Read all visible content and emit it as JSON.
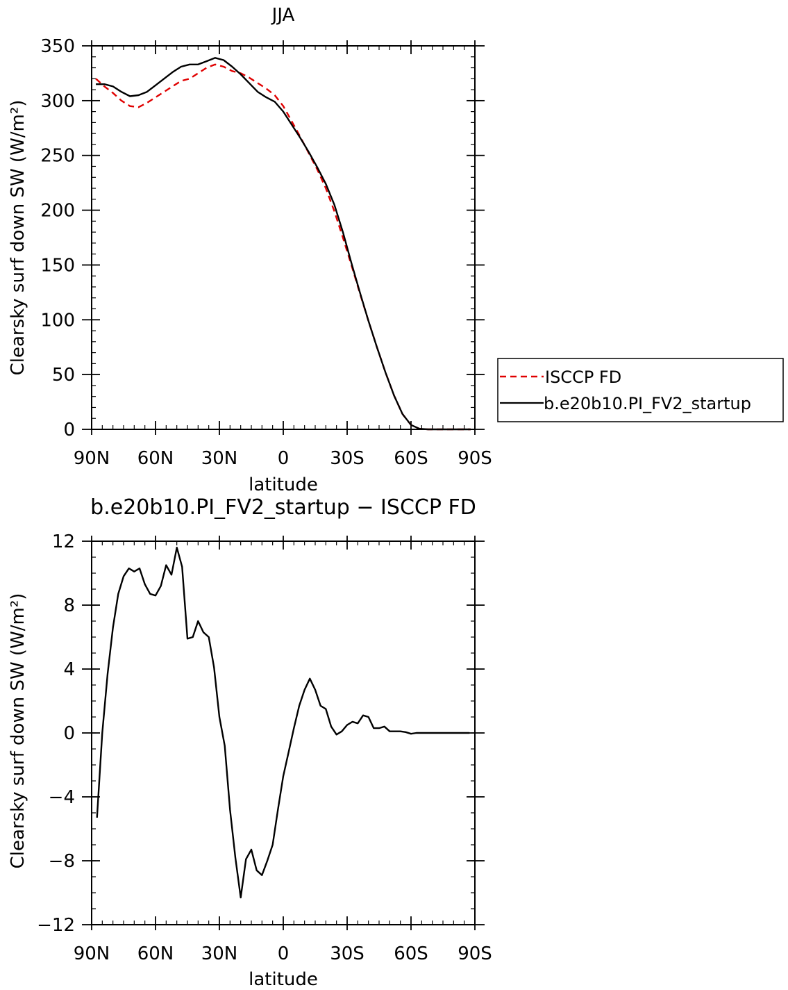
{
  "chart_data": [
    {
      "type": "line",
      "title": "JJA",
      "xlabel": "latitude",
      "ylabel": "Clearsky surf down SW (W/m²)",
      "xlim": [
        90,
        -90
      ],
      "ylim": [
        0,
        350
      ],
      "x_ticks": [
        {
          "value": 90,
          "label": "90N"
        },
        {
          "value": 60,
          "label": "60N"
        },
        {
          "value": 30,
          "label": "30N"
        },
        {
          "value": 0,
          "label": "0"
        },
        {
          "value": -30,
          "label": "30S"
        },
        {
          "value": -60,
          "label": "60S"
        },
        {
          "value": -90,
          "label": "90S"
        }
      ],
      "y_ticks": [
        {
          "value": 0,
          "label": "0"
        },
        {
          "value": 50,
          "label": "50"
        },
        {
          "value": 100,
          "label": "100"
        },
        {
          "value": 150,
          "label": "150"
        },
        {
          "value": 200,
          "label": "200"
        },
        {
          "value": 250,
          "label": "250"
        },
        {
          "value": 300,
          "label": "300"
        },
        {
          "value": 350,
          "label": "350"
        }
      ],
      "legend_placement": "right",
      "series": [
        {
          "name": "ISCCP FD",
          "color": "#e00000",
          "dash": true,
          "x": [
            88,
            84,
            80,
            76,
            72,
            68,
            64,
            60,
            56,
            52,
            48,
            44,
            40,
            36,
            32,
            28,
            24,
            20,
            16,
            12,
            8,
            4,
            0,
            -4,
            -8,
            -12,
            -16,
            -20,
            -24,
            -28,
            -32,
            -36,
            -40,
            -44,
            -48,
            -52,
            -56,
            -60,
            -64,
            -68,
            -72,
            -76,
            -80,
            -84,
            -88
          ],
          "values": [
            320,
            313,
            307,
            300,
            295,
            294,
            298,
            303,
            308,
            313,
            318,
            320,
            325,
            330,
            333,
            331,
            327,
            325,
            321,
            316,
            311,
            305,
            295,
            281,
            267,
            252,
            237,
            220,
            199,
            175,
            150,
            124,
            99,
            75,
            52,
            31,
            14,
            4,
            0.5,
            0,
            0,
            0,
            0,
            0,
            0
          ]
        },
        {
          "name": "b.e20b10.PI_FV2_startup",
          "color": "#000000",
          "dash": false,
          "x": [
            88,
            84,
            80,
            76,
            72,
            68,
            64,
            60,
            56,
            52,
            48,
            44,
            40,
            36,
            32,
            28,
            24,
            20,
            16,
            12,
            8,
            4,
            0,
            -4,
            -8,
            -12,
            -16,
            -20,
            -24,
            -28,
            -32,
            -36,
            -40,
            -44,
            -48,
            -52,
            -56,
            -60,
            -64,
            -68,
            -72,
            -76,
            -80,
            -84,
            -88
          ],
          "values": [
            315,
            315,
            313,
            308,
            304,
            305,
            308,
            314,
            320,
            326,
            331,
            333,
            333,
            336,
            339,
            337,
            331,
            324,
            316,
            308,
            303,
            299,
            290,
            278,
            266,
            253,
            239,
            224,
            205,
            180,
            152,
            125,
            99,
            75,
            52,
            31,
            14,
            4,
            0.5,
            0,
            0,
            0,
            0,
            0,
            0
          ]
        }
      ]
    },
    {
      "type": "line",
      "title": "b.e20b10.PI_FV2_startup − ISCCP FD",
      "xlabel": "latitude",
      "ylabel": "Clearsky surf down SW (W/m²)",
      "xlim": [
        90,
        -90
      ],
      "ylim": [
        -12,
        12
      ],
      "x_ticks": [
        {
          "value": 90,
          "label": "90N"
        },
        {
          "value": 60,
          "label": "60N"
        },
        {
          "value": 30,
          "label": "30N"
        },
        {
          "value": 0,
          "label": "0"
        },
        {
          "value": -30,
          "label": "30S"
        },
        {
          "value": -60,
          "label": "60S"
        },
        {
          "value": -90,
          "label": "90S"
        }
      ],
      "y_ticks": [
        {
          "value": -12,
          "label": "−12"
        },
        {
          "value": -8,
          "label": "−8"
        },
        {
          "value": -4,
          "label": "−4"
        },
        {
          "value": 0,
          "label": "0"
        },
        {
          "value": 4,
          "label": "4"
        },
        {
          "value": 8,
          "label": "8"
        },
        {
          "value": 12,
          "label": "12"
        }
      ],
      "series": [
        {
          "name": "",
          "color": "#000000",
          "dash": false,
          "x": [
            87.5,
            85,
            82.5,
            80,
            77.5,
            75,
            72.5,
            70,
            67.5,
            65,
            62.5,
            60,
            57.5,
            55,
            52.5,
            50,
            47.5,
            45,
            42.5,
            40,
            37.5,
            35,
            32.5,
            30,
            27.5,
            25,
            22.5,
            20,
            17.5,
            15,
            12.5,
            10,
            7.5,
            5,
            2.5,
            0,
            -2.5,
            -5,
            -7.5,
            -10,
            -12.5,
            -15,
            -17.5,
            -20,
            -22.5,
            -25,
            -27.5,
            -30,
            -32.5,
            -35,
            -37.5,
            -40,
            -42.5,
            -45,
            -47.5,
            -50,
            -52.5,
            -55,
            -57.5,
            -60,
            -62.5,
            -65,
            -67.5,
            -70,
            -72.5,
            -75,
            -77.5,
            -80,
            -82.5,
            -85,
            -87.5
          ],
          "values": [
            -5.3,
            0,
            3.7,
            6.6,
            8.7,
            9.8,
            10.3,
            10.1,
            10.3,
            9.3,
            8.7,
            8.6,
            9.2,
            10.5,
            9.9,
            11.6,
            10.4,
            5.9,
            6.0,
            7.0,
            6.3,
            6.0,
            4.1,
            1.0,
            -0.8,
            -4.8,
            -7.8,
            -10.3,
            -7.9,
            -7.3,
            -8.6,
            -8.9,
            -8.0,
            -7.0,
            -4.8,
            -2.7,
            -1.2,
            0.3,
            1.7,
            2.7,
            3.4,
            2.7,
            1.7,
            1.5,
            0.4,
            -0.1,
            0.1,
            0.5,
            0.7,
            0.6,
            1.1,
            1.0,
            0.3,
            0.3,
            0.4,
            0.1,
            0.1,
            0.1,
            0.05,
            -0.05,
            0,
            0,
            0,
            0,
            0,
            0,
            0,
            0,
            0,
            0,
            0
          ]
        }
      ]
    }
  ]
}
